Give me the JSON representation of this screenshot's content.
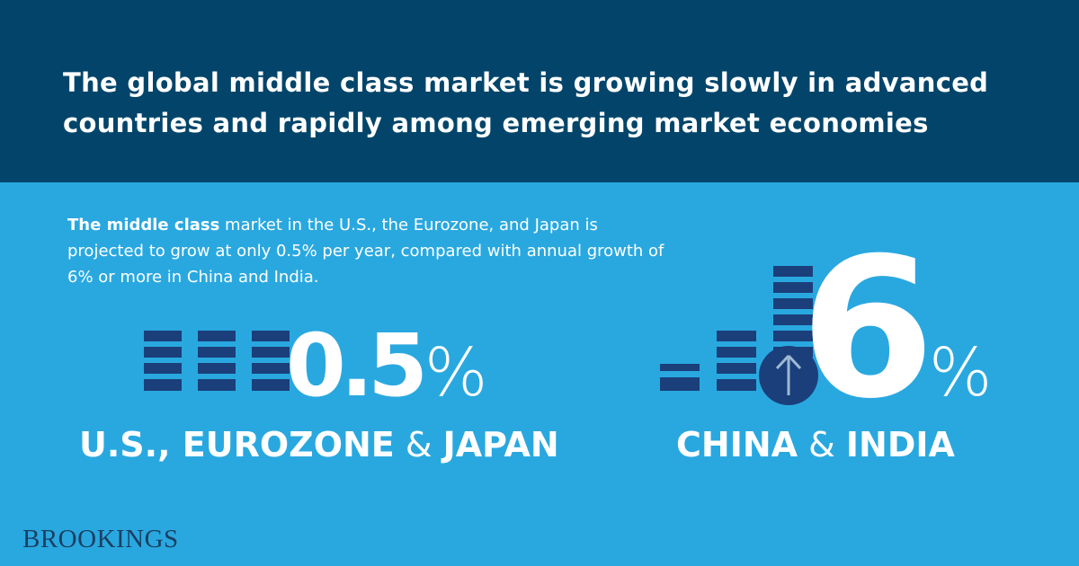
{
  "header": {
    "title_lines": [
      "The global middle class market is growing slowly in advanced",
      "countries and rapidly among emerging market economies"
    ]
  },
  "intro": {
    "bold": "The middle class",
    "text": " market in the U.S., the Eurozone, and Japan is projected to grow at only 0.5% per year, compared with annual growth of 6% or more in China and India."
  },
  "stats": [
    {
      "value": "0.5",
      "unit": "%",
      "label": [
        "U.S., EUROZONE",
        "&",
        "JAPAN"
      ]
    },
    {
      "value": "6",
      "unit": "%",
      "label": [
        "CHINA",
        "&",
        "INDIA"
      ]
    }
  ],
  "footer": {
    "brand": "BROOKINGS"
  }
}
